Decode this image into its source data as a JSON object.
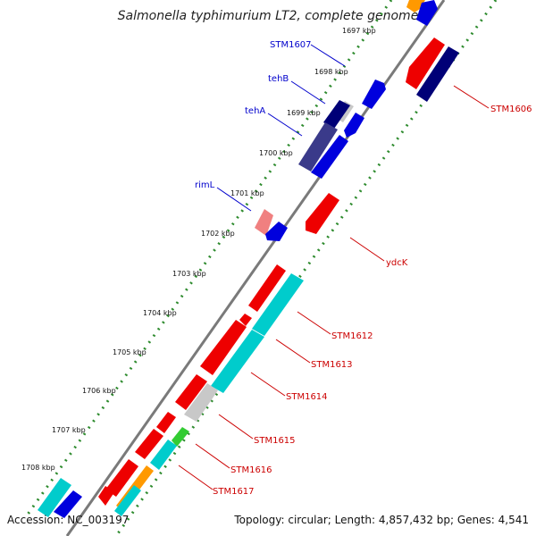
{
  "title": "Salmonella typhimurium LT2, complete genome",
  "footer": {
    "accession": "Accession: NC_003197",
    "topology": "Topology: circular; Length: 4,857,432 bp; Genes: 4,541"
  },
  "ticks": [
    "1697 kbp",
    "1698 kbp",
    "1699 kbp",
    "1700 kbp",
    "1701 kbp",
    "1702 kbp",
    "1703 kbp",
    "1704 kbp",
    "1705 kbp",
    "1706 kbp",
    "1707 kbp",
    "1708 kbp"
  ],
  "labels": {
    "stm1607": "STM1607",
    "tehB": "tehB",
    "tehA": "tehA",
    "rimL": "rimL",
    "stm1606": "STM1606",
    "ydcK": "ydcK",
    "stm1612": "STM1612",
    "stm1613": "STM1613",
    "stm1614": "STM1614",
    "stm1615": "STM1615",
    "stm1616": "STM1616",
    "stm1617": "STM1617"
  },
  "colors": {
    "forward_label": "#0000cc",
    "reverse_label": "#cc0000",
    "backbone": "#7a7a7a",
    "dotted_track": "#2e8b2e",
    "red": "#ee0000",
    "blue": "#0000dd",
    "navy": "#000077",
    "slate": "#3a3a8a",
    "cyan": "#00cccc",
    "pink": "#f08080",
    "gray": "#c8c8c8",
    "green": "#33cc33",
    "orange": "#ff9900"
  }
}
